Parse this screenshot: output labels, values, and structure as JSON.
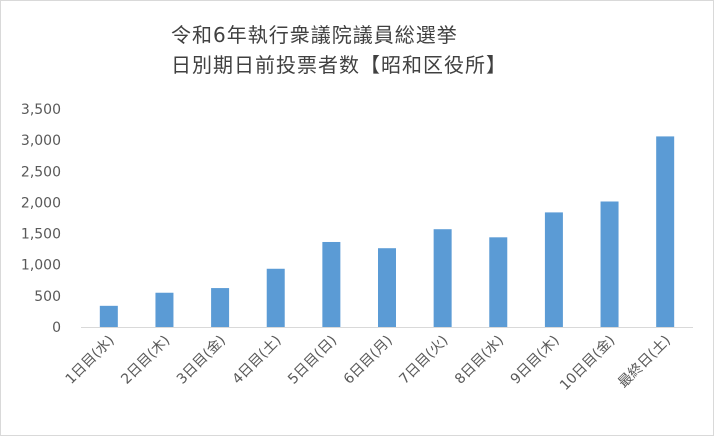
{
  "chart_data": {
    "type": "bar",
    "title_lines": [
      "令和6年執行衆議院議員総選挙",
      "日別期日前投票者数【昭和区役所】"
    ],
    "categories": [
      "1日目(水)",
      "2日目(木)",
      "3日目(金)",
      "4日目(土)",
      "5日目(日)",
      "6日目(月)",
      "7日目(火)",
      "8日目(水)",
      "9日目(木)",
      "10日目(金)",
      "最終日(土)"
    ],
    "values": [
      340,
      550,
      625,
      935,
      1365,
      1265,
      1570,
      1440,
      1840,
      2015,
      3060
    ],
    "ylim": [
      0,
      3500
    ],
    "yticks": [
      0,
      500,
      1000,
      1500,
      2000,
      2500,
      3000,
      3500
    ],
    "ytick_labels": [
      "0",
      "500",
      "1,000",
      "1,500",
      "2,000",
      "2,500",
      "3,000",
      "3,500"
    ],
    "xlabel": "",
    "ylabel": "",
    "grid": false,
    "legend": "none",
    "bar_color": "#5b9bd5",
    "axis_color": "#d9d9d9"
  }
}
